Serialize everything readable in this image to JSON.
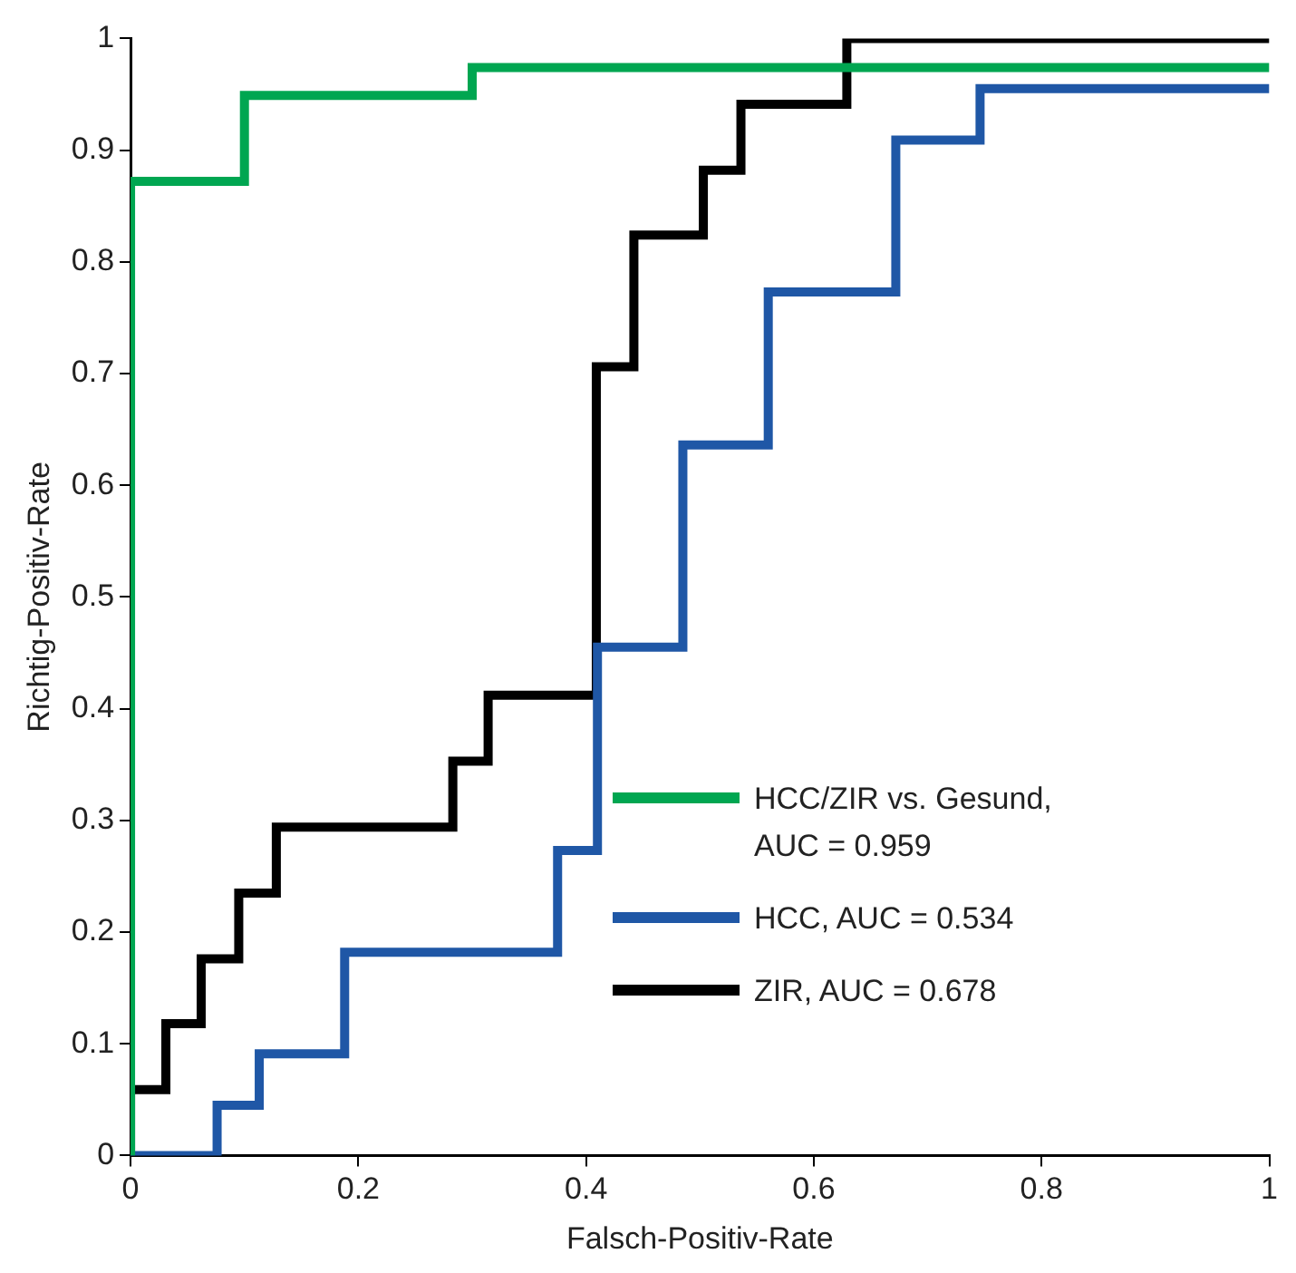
{
  "chart_data": {
    "type": "step",
    "xlabel": "Falsch-Positiv-Rate",
    "ylabel": "Richtig-Positiv-Rate",
    "xlim": [
      0,
      1
    ],
    "ylim": [
      0,
      1
    ],
    "xticks": [
      0,
      0.2,
      0.4,
      0.6,
      0.8,
      1
    ],
    "yticks": [
      0,
      0.1,
      0.2,
      0.3,
      0.4,
      0.5,
      0.6,
      0.7,
      0.8,
      0.9,
      1
    ],
    "grid": false,
    "legend": "right",
    "marker": "none",
    "line_style": "solid",
    "series": [
      {
        "name": "HCC/ZIR vs. Gesund, AUC = 0.959",
        "color": "#00a651",
        "x": [
          0,
          0,
          0.1,
          0.3,
          1
        ],
        "values": [
          0,
          0.872,
          0.949,
          0.974,
          0.974
        ]
      },
      {
        "name": "HCC, AUC = 0.534",
        "color": "#1f57a6",
        "x": [
          0,
          0.076,
          0.113,
          0.188,
          0.375,
          0.41,
          0.485,
          0.56,
          0.672,
          0.746,
          1
        ],
        "values": [
          0,
          0.045,
          0.091,
          0.182,
          0.273,
          0.455,
          0.636,
          0.773,
          0.909,
          0.955,
          0.955
        ]
      },
      {
        "name": "ZIR, AUC = 0.678",
        "color": "#000000",
        "x": [
          0,
          0,
          0.031,
          0.062,
          0.095,
          0.128,
          0.283,
          0.314,
          0.409,
          0.442,
          0.503,
          0.536,
          0.629,
          1
        ],
        "values": [
          0,
          0.059,
          0.118,
          0.176,
          0.235,
          0.294,
          0.353,
          0.412,
          0.706,
          0.824,
          0.882,
          0.941,
          1,
          1
        ]
      }
    ]
  }
}
